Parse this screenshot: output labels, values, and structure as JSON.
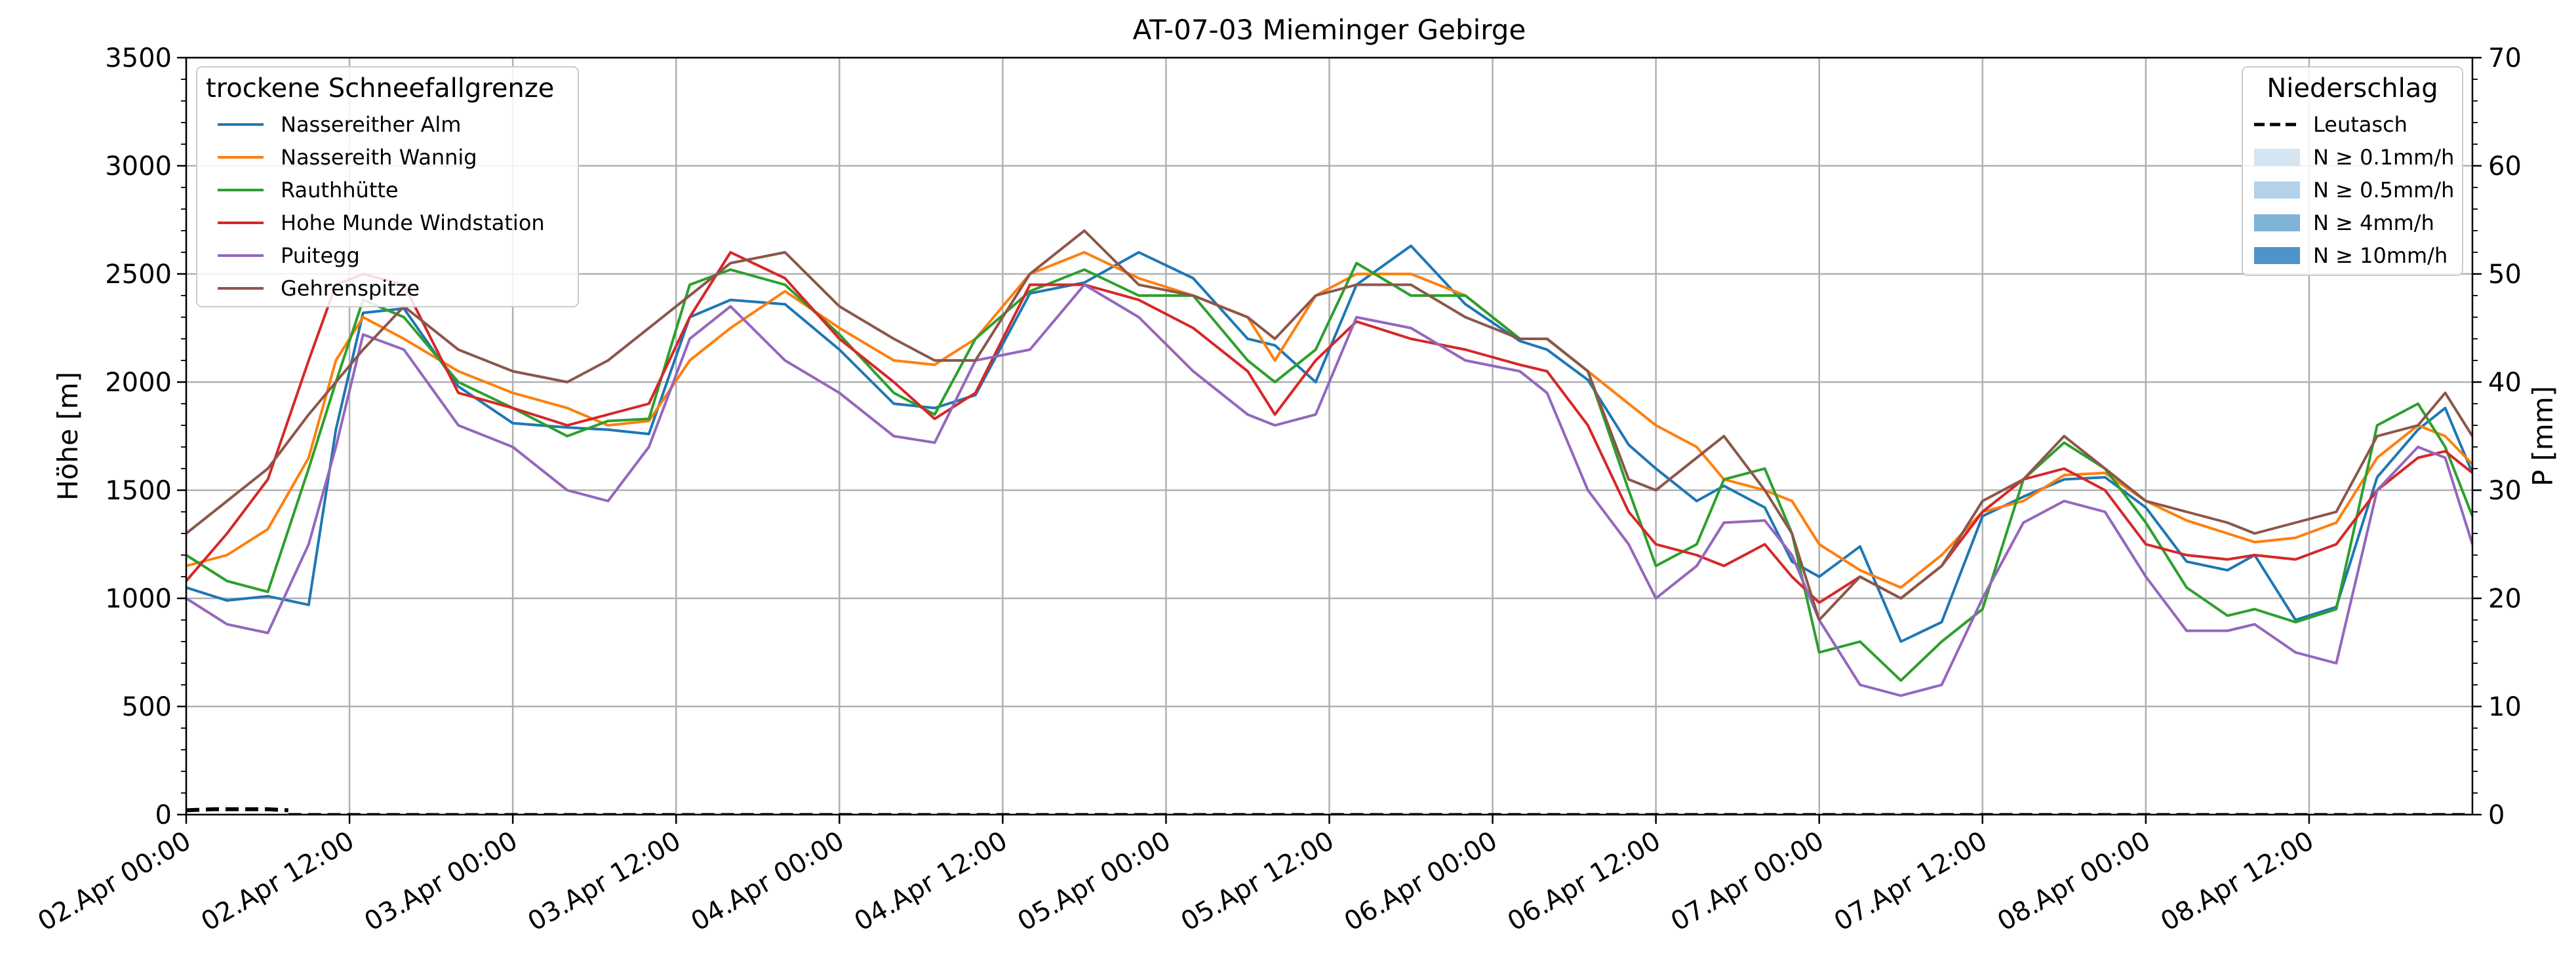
{
  "chart_data": {
    "type": "line",
    "title": "AT-07-03 Mieminger Gebirge",
    "ylabel": "Höhe [m]",
    "y2label": "P [mm]",
    "ylim": [
      0,
      3500
    ],
    "y2lim": [
      0,
      70
    ],
    "yticks": [
      0,
      500,
      1000,
      1500,
      2000,
      2500,
      3000,
      3500
    ],
    "y2ticks": [
      0,
      10,
      20,
      30,
      40,
      50,
      60,
      70
    ],
    "xlim": [
      0,
      168
    ],
    "x_unit": "hours after 02.Apr 00:00",
    "xticks": [
      0,
      12,
      24,
      36,
      48,
      60,
      72,
      84,
      96,
      108,
      120,
      132,
      144,
      156
    ],
    "xtick_labels": [
      "02.Apr 00:00",
      "02.Apr 12:00",
      "03.Apr 00:00",
      "03.Apr 12:00",
      "04.Apr 00:00",
      "04.Apr 12:00",
      "05.Apr 00:00",
      "05.Apr 12:00",
      "06.Apr 00:00",
      "06.Apr 12:00",
      "07.Apr 00:00",
      "07.Apr 12:00",
      "08.Apr 00:00",
      "08.Apr 12:00"
    ],
    "grid": true,
    "legend_left": {
      "title": "trockene Schneefallgrenze",
      "placement": "top-left"
    },
    "legend_right": {
      "title": "Niederschlag",
      "placement": "top-right",
      "entries": [
        {
          "label": "Leutasch",
          "style": "dashed-line",
          "color": "#000000"
        },
        {
          "label": "N ≥ 0.1mm/h",
          "style": "patch",
          "color": "#d5e5f2"
        },
        {
          "label": "N ≥ 0.5mm/h",
          "style": "patch",
          "color": "#b3d1e9"
        },
        {
          "label": "N ≥ 4mm/h",
          "style": "patch",
          "color": "#7fb3d8"
        },
        {
          "label": "N ≥ 10mm/h",
          "style": "patch",
          "color": "#4f94c9"
        }
      ]
    },
    "precipitation": {
      "name": "Leutasch",
      "x": [
        0,
        2,
        4,
        6,
        7.5
      ],
      "y": [
        0.4,
        0.5,
        0.5,
        0.5,
        0.4
      ]
    },
    "series": [
      {
        "name": "Nassereither Alm",
        "color": "#1f77b4",
        "x": [
          0,
          3,
          6,
          9,
          11,
          13,
          16,
          20,
          24,
          28,
          31,
          34,
          37,
          40,
          44,
          48,
          52,
          55,
          58,
          62,
          66,
          70,
          74,
          78,
          80,
          83,
          86,
          90,
          94,
          98,
          100,
          103,
          106,
          108,
          111,
          113,
          116,
          118,
          120,
          123,
          126,
          129,
          132,
          135,
          138,
          141,
          144,
          147,
          150,
          152,
          155,
          158,
          161,
          164,
          166,
          168
        ],
        "y": [
          1050,
          990,
          1010,
          970,
          1780,
          2320,
          2340,
          1980,
          1810,
          1790,
          1780,
          1760,
          2300,
          2380,
          2360,
          2150,
          1900,
          1880,
          1940,
          2410,
          2460,
          2600,
          2480,
          2200,
          2170,
          2000,
          2450,
          2630,
          2360,
          2190,
          2150,
          2010,
          1710,
          1600,
          1450,
          1520,
          1420,
          1170,
          1100,
          1240,
          800,
          890,
          1380,
          1470,
          1550,
          1560,
          1420,
          1170,
          1130,
          1200,
          900,
          960,
          1560,
          1780,
          1880,
          1580
        ]
      },
      {
        "name": "Nassereith Wannig",
        "color": "#ff7f0e",
        "x": [
          0,
          3,
          6,
          9,
          11,
          13,
          16,
          20,
          24,
          28,
          31,
          34,
          37,
          40,
          44,
          48,
          52,
          55,
          58,
          62,
          66,
          70,
          74,
          78,
          80,
          83,
          86,
          90,
          94,
          98,
          100,
          103,
          106,
          108,
          111,
          113,
          116,
          118,
          120,
          123,
          126,
          129,
          132,
          135,
          138,
          141,
          144,
          147,
          150,
          152,
          155,
          158,
          161,
          164,
          166,
          168
        ],
        "y": [
          1150,
          1200,
          1320,
          1650,
          2100,
          2300,
          2200,
          2050,
          1950,
          1880,
          1800,
          1820,
          2100,
          2250,
          2420,
          2250,
          2100,
          2080,
          2200,
          2500,
          2600,
          2480,
          2400,
          2300,
          2100,
          2400,
          2500,
          2500,
          2400,
          2200,
          2200,
          2050,
          1900,
          1800,
          1700,
          1550,
          1500,
          1450,
          1250,
          1130,
          1050,
          1200,
          1400,
          1450,
          1570,
          1580,
          1450,
          1360,
          1300,
          1260,
          1280,
          1350,
          1650,
          1800,
          1750,
          1620
        ]
      },
      {
        "name": "Rauthhütte",
        "color": "#2ca02c",
        "x": [
          0,
          3,
          6,
          9,
          11,
          13,
          16,
          20,
          24,
          28,
          31,
          34,
          37,
          40,
          44,
          48,
          52,
          55,
          58,
          62,
          66,
          70,
          74,
          78,
          80,
          83,
          86,
          90,
          94,
          98,
          100,
          103,
          106,
          108,
          111,
          113,
          116,
          118,
          120,
          123,
          126,
          129,
          132,
          135,
          138,
          141,
          144,
          147,
          150,
          152,
          155,
          158,
          161,
          164,
          166,
          168
        ],
        "y": [
          1200,
          1080,
          1030,
          1600,
          2000,
          2380,
          2300,
          2000,
          1880,
          1750,
          1820,
          1830,
          2450,
          2520,
          2450,
          2220,
          1950,
          1850,
          2200,
          2420,
          2520,
          2400,
          2400,
          2100,
          2000,
          2150,
          2550,
          2400,
          2400,
          2200,
          2200,
          2050,
          1500,
          1150,
          1250,
          1550,
          1600,
          1300,
          750,
          800,
          620,
          800,
          950,
          1550,
          1720,
          1600,
          1350,
          1050,
          920,
          950,
          890,
          950,
          1800,
          1900,
          1700,
          1380
        ]
      },
      {
        "name": "Hohe Munde Windstation",
        "color": "#d62728",
        "x": [
          0,
          3,
          6,
          9,
          11,
          13,
          16,
          20,
          24,
          28,
          31,
          34,
          37,
          40,
          44,
          48,
          52,
          55,
          58,
          62,
          66,
          70,
          74,
          78,
          80,
          83,
          86,
          90,
          94,
          98,
          100,
          103,
          106,
          108,
          111,
          113,
          116,
          118,
          120,
          123,
          126,
          129,
          132,
          135,
          138,
          141,
          144,
          147,
          150,
          152,
          155,
          158,
          161,
          164,
          166,
          168
        ],
        "y": [
          1080,
          1300,
          1550,
          2100,
          2450,
          2500,
          2450,
          1950,
          1880,
          1800,
          1850,
          1900,
          2300,
          2600,
          2480,
          2200,
          2000,
          1830,
          1950,
          2450,
          2450,
          2380,
          2250,
          2050,
          1850,
          2100,
          2280,
          2200,
          2150,
          2080,
          2050,
          1800,
          1400,
          1250,
          1200,
          1150,
          1250,
          1100,
          980,
          1100,
          1000,
          1150,
          1400,
          1550,
          1600,
          1500,
          1250,
          1200,
          1180,
          1200,
          1180,
          1250,
          1500,
          1650,
          1680,
          1580
        ]
      },
      {
        "name": "Puitegg",
        "color": "#9467bd",
        "x": [
          0,
          3,
          6,
          9,
          11,
          13,
          16,
          20,
          24,
          28,
          31,
          34,
          37,
          40,
          44,
          48,
          52,
          55,
          58,
          62,
          66,
          70,
          74,
          78,
          80,
          83,
          86,
          90,
          94,
          98,
          100,
          103,
          106,
          108,
          111,
          113,
          116,
          118,
          120,
          123,
          126,
          129,
          132,
          135,
          138,
          141,
          144,
          147,
          150,
          152,
          155,
          158,
          161,
          164,
          166,
          168
        ],
        "y": [
          1000,
          880,
          840,
          1250,
          1700,
          2220,
          2150,
          1800,
          1700,
          1500,
          1450,
          1700,
          2200,
          2350,
          2100,
          1950,
          1750,
          1720,
          2100,
          2150,
          2450,
          2300,
          2050,
          1850,
          1800,
          1850,
          2300,
          2250,
          2100,
          2050,
          1950,
          1500,
          1250,
          1000,
          1150,
          1350,
          1360,
          1200,
          900,
          600,
          550,
          600,
          1000,
          1350,
          1450,
          1400,
          1100,
          850,
          850,
          880,
          750,
          700,
          1500,
          1700,
          1650,
          1250
        ]
      },
      {
        "name": "Gehrenspitze",
        "color": "#8c564b",
        "x": [
          0,
          3,
          6,
          9,
          11,
          13,
          16,
          20,
          24,
          28,
          31,
          34,
          37,
          40,
          44,
          48,
          52,
          55,
          58,
          62,
          66,
          70,
          74,
          78,
          80,
          83,
          86,
          90,
          94,
          98,
          100,
          103,
          106,
          108,
          111,
          113,
          116,
          118,
          120,
          123,
          126,
          129,
          132,
          135,
          138,
          141,
          144,
          147,
          150,
          152,
          155,
          158,
          161,
          164,
          166,
          168
        ],
        "y": [
          1300,
          1450,
          1600,
          1850,
          2000,
          2150,
          2350,
          2150,
          2050,
          2000,
          2100,
          2250,
          2400,
          2550,
          2600,
          2350,
          2200,
          2100,
          2100,
          2500,
          2700,
          2450,
          2400,
          2300,
          2200,
          2400,
          2450,
          2450,
          2300,
          2200,
          2200,
          2050,
          1550,
          1500,
          1650,
          1750,
          1500,
          1300,
          900,
          1100,
          1000,
          1150,
          1450,
          1550,
          1750,
          1600,
          1450,
          1400,
          1350,
          1300,
          1350,
          1400,
          1750,
          1800,
          1950,
          1750
        ]
      }
    ]
  }
}
